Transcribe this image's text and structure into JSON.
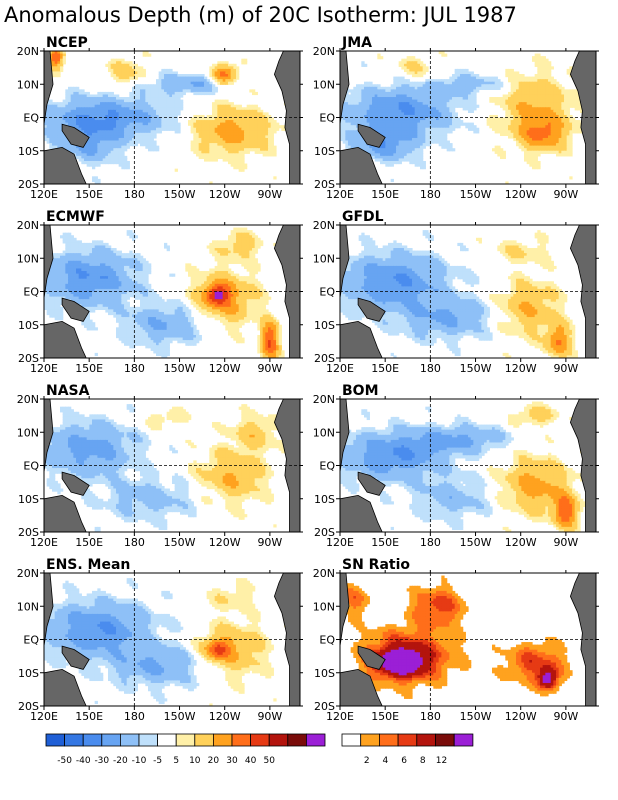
{
  "title": "Anomalous Depth (m) of 20C Isotherm: JUL 1987",
  "chart_data": {
    "type": "heatmap",
    "title": "Anomalous Depth (m) of 20C Isotherm: JUL 1987",
    "x_ticks": [
      "120E",
      "150E",
      "180",
      "150W",
      "120W",
      "90W"
    ],
    "y_ticks": [
      "20N",
      "10N",
      "EQ",
      "10S",
      "20S"
    ],
    "xlim": [
      120,
      290
    ],
    "ylim": [
      -20,
      20
    ],
    "panels": [
      {
        "label": "NCEP",
        "blobs": [
          {
            "lon": 160,
            "lat": 0,
            "rlon": 40,
            "rlat": 6,
            "v": -30
          },
          {
            "lon": 150,
            "lat": -8,
            "rlon": 20,
            "rlat": 6,
            "v": -20
          },
          {
            "lon": 215,
            "lat": 10,
            "rlon": 25,
            "rlat": 3,
            "v": -20
          },
          {
            "lon": 245,
            "lat": -4,
            "rlon": 25,
            "rlat": 7,
            "v": 25
          },
          {
            "lon": 240,
            "lat": 13,
            "rlon": 8,
            "rlat": 3,
            "v": 35
          },
          {
            "lon": 175,
            "lat": 14,
            "rlon": 12,
            "rlat": 4,
            "v": 15
          },
          {
            "lon": 128,
            "lat": 18,
            "rlon": 5,
            "rlat": 3,
            "v": 40
          }
        ]
      },
      {
        "label": "JMA",
        "blobs": [
          {
            "lon": 160,
            "lat": 2,
            "rlon": 35,
            "rlat": 7,
            "v": -30
          },
          {
            "lon": 150,
            "lat": -8,
            "rlon": 20,
            "rlat": 5,
            "v": -25
          },
          {
            "lon": 205,
            "lat": 10,
            "rlon": 25,
            "rlat": 3,
            "v": -15
          },
          {
            "lon": 250,
            "lat": 3,
            "rlon": 25,
            "rlat": 10,
            "v": 20
          },
          {
            "lon": 255,
            "lat": -5,
            "rlon": 15,
            "rlat": 5,
            "v": 25
          },
          {
            "lon": 170,
            "lat": 15,
            "rlon": 15,
            "rlat": 4,
            "v": 10
          }
        ]
      },
      {
        "label": "ECMWF",
        "blobs": [
          {
            "lon": 150,
            "lat": 4,
            "rlon": 30,
            "rlat": 8,
            "v": -30
          },
          {
            "lon": 200,
            "lat": -10,
            "rlon": 25,
            "rlat": 6,
            "v": -20
          },
          {
            "lon": 240,
            "lat": -2,
            "rlon": 20,
            "rlat": 8,
            "v": 25
          },
          {
            "lon": 235,
            "lat": -1,
            "rlon": 8,
            "rlat": 3,
            "v": 35
          },
          {
            "lon": 270,
            "lat": -15,
            "rlon": 6,
            "rlat": 6,
            "v": 40
          },
          {
            "lon": 250,
            "lat": 14,
            "rlon": 15,
            "rlat": 4,
            "v": 15
          }
        ]
      },
      {
        "label": "GFDL",
        "blobs": [
          {
            "lon": 155,
            "lat": 3,
            "rlon": 35,
            "rlat": 8,
            "v": -30
          },
          {
            "lon": 190,
            "lat": -8,
            "rlon": 30,
            "rlat": 6,
            "v": -20
          },
          {
            "lon": 245,
            "lat": -5,
            "rlon": 20,
            "rlat": 8,
            "v": 20
          },
          {
            "lon": 265,
            "lat": -15,
            "rlon": 8,
            "rlat": 5,
            "v": 30
          },
          {
            "lon": 240,
            "lat": 12,
            "rlon": 20,
            "rlat": 4,
            "v": 10
          }
        ]
      },
      {
        "label": "NASA",
        "blobs": [
          {
            "lon": 150,
            "lat": 5,
            "rlon": 30,
            "rlat": 8,
            "v": -25
          },
          {
            "lon": 190,
            "lat": -10,
            "rlon": 30,
            "rlat": 6,
            "v": -15
          },
          {
            "lon": 245,
            "lat": -3,
            "rlon": 22,
            "rlat": 8,
            "v": 20
          },
          {
            "lon": 260,
            "lat": 10,
            "rlon": 15,
            "rlat": 5,
            "v": 15
          },
          {
            "lon": 200,
            "lat": 14,
            "rlon": 15,
            "rlat": 3,
            "v": 10
          }
        ]
      },
      {
        "label": "BOM",
        "blobs": [
          {
            "lon": 155,
            "lat": 3,
            "rlon": 35,
            "rlat": 7,
            "v": -30
          },
          {
            "lon": 200,
            "lat": 8,
            "rlon": 30,
            "rlat": 4,
            "v": -20
          },
          {
            "lon": 195,
            "lat": -10,
            "rlon": 25,
            "rlat": 6,
            "v": -15
          },
          {
            "lon": 250,
            "lat": -6,
            "rlon": 22,
            "rlat": 8,
            "v": 25
          },
          {
            "lon": 270,
            "lat": -14,
            "rlon": 8,
            "rlat": 5,
            "v": 35
          },
          {
            "lon": 250,
            "lat": 15,
            "rlon": 15,
            "rlat": 3,
            "v": 15
          }
        ]
      },
      {
        "label": "ENS. Mean",
        "blobs": [
          {
            "lon": 155,
            "lat": 3,
            "rlon": 35,
            "rlat": 8,
            "v": -30
          },
          {
            "lon": 195,
            "lat": -8,
            "rlon": 30,
            "rlat": 6,
            "v": -20
          },
          {
            "lon": 245,
            "lat": -3,
            "rlon": 22,
            "rlat": 8,
            "v": 20
          },
          {
            "lon": 235,
            "lat": -3,
            "rlon": 8,
            "rlat": 3,
            "v": 30
          },
          {
            "lon": 245,
            "lat": 13,
            "rlon": 15,
            "rlat": 4,
            "v": 10
          }
        ]
      },
      {
        "label": "SN Ratio",
        "blobs": [
          {
            "lon": 165,
            "lat": -5,
            "rlon": 30,
            "rlat": 8,
            "v": 9
          },
          {
            "lon": 160,
            "lat": -7,
            "rlon": 15,
            "rlat": 4,
            "v": 13
          },
          {
            "lon": 185,
            "lat": 10,
            "rlon": 18,
            "rlat": 6,
            "v": 7
          },
          {
            "lon": 250,
            "lat": -7,
            "rlon": 20,
            "rlat": 6,
            "v": 7
          },
          {
            "lon": 258,
            "lat": -12,
            "rlon": 6,
            "rlat": 3,
            "v": 13
          },
          {
            "lon": 130,
            "lat": 12,
            "rlon": 10,
            "rlat": 5,
            "v": 5
          }
        ]
      }
    ],
    "colorbars": [
      {
        "name": "depth",
        "labels": [
          "-50",
          "-40",
          "-30",
          "-20",
          "-10",
          "-5",
          "5",
          "10",
          "20",
          "30",
          "40",
          "50"
        ],
        "colors": [
          "#1f5fd6",
          "#3477e3",
          "#4a8cee",
          "#67a4f2",
          "#8ec0f7",
          "#bfe0fb",
          "#ffffff",
          "#fff0a8",
          "#ffd15a",
          "#ffa21f",
          "#ff6e1a",
          "#e63a14",
          "#b3140d",
          "#7a0c0a",
          "#9b1fd6"
        ]
      },
      {
        "name": "sn",
        "labels": [
          "2",
          "4",
          "6",
          "8",
          "12"
        ],
        "colors": [
          "#ffffff",
          "#ffa21f",
          "#ff6e1a",
          "#e63a14",
          "#b3140d",
          "#7a0c0a",
          "#9b1fd6"
        ]
      }
    ]
  }
}
